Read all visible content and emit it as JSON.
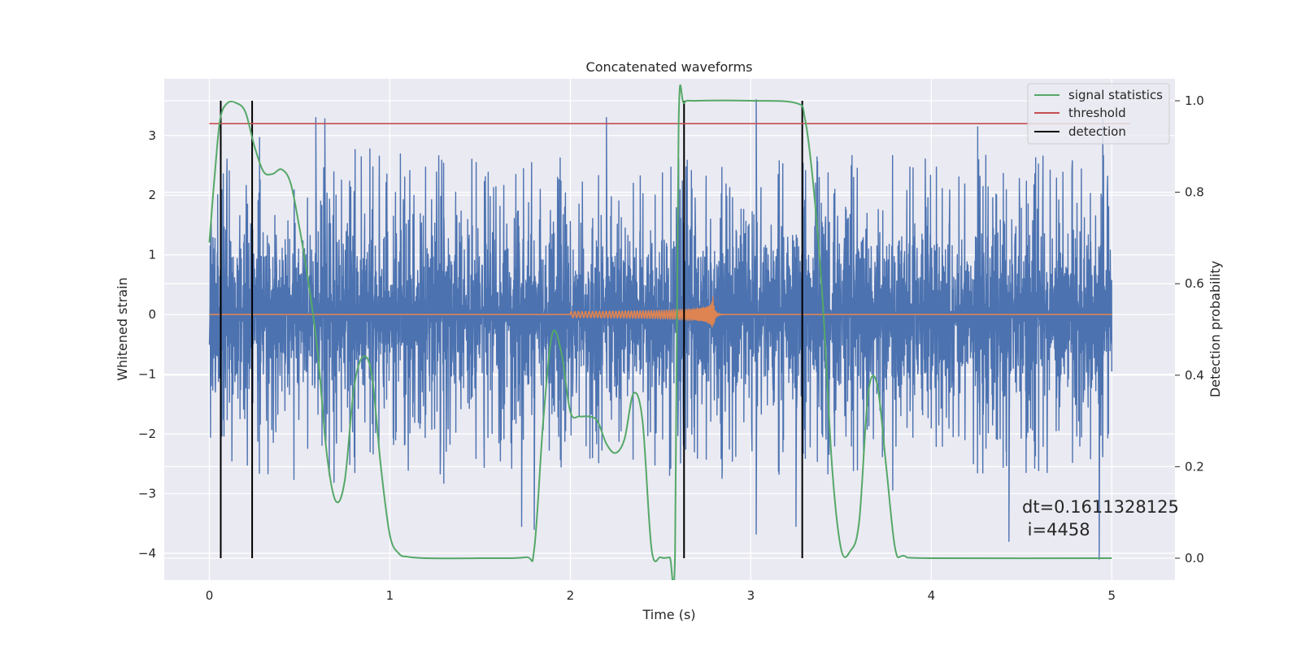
{
  "chart_data": {
    "type": "line",
    "title": "Concatenated waveforms",
    "xlabel": "Time (s)",
    "ylabel": "Whitened strain",
    "ylabel_right": "Detection probability",
    "xlim": [
      -0.25,
      5.35
    ],
    "ylim": [
      -4.45,
      3.95
    ],
    "ylim_right": [
      -0.048,
      1.048
    ],
    "xticks": [
      0,
      1,
      2,
      3,
      4,
      5
    ],
    "yticks": [
      -4,
      -3,
      -2,
      -1,
      0,
      1,
      2,
      3
    ],
    "yticks_right": [
      0.0,
      0.2,
      0.4,
      0.6,
      0.8,
      1.0
    ],
    "xtick_labels": [
      "0",
      "1",
      "2",
      "3",
      "4",
      "5"
    ],
    "ytick_labels": [
      "−4",
      "−3",
      "−2",
      "−1",
      "0",
      "1",
      "2",
      "3"
    ],
    "ytick_right_labels": [
      "0.0",
      "0.2",
      "0.4",
      "0.6",
      "0.8",
      "1.0"
    ],
    "grid": true,
    "legend_position": "top-right",
    "colors": {
      "strain": "#4c72b0",
      "template": "#dd8452",
      "signal_statistics": "#55a868",
      "threshold": "#c44e52",
      "detection": "#000000",
      "background": "#eaeaf2",
      "grid": "#ffffff"
    },
    "series": [
      {
        "name": "signal statistics",
        "axis": "right",
        "x": [
          0.0,
          0.03,
          0.06,
          0.1,
          0.15,
          0.2,
          0.25,
          0.3,
          0.35,
          0.4,
          0.45,
          0.5,
          0.55,
          0.6,
          0.65,
          0.7,
          0.75,
          0.8,
          0.85,
          0.9,
          0.95,
          1.0,
          1.05,
          1.1,
          1.2,
          1.5,
          1.75,
          1.8,
          1.85,
          1.9,
          1.95,
          2.0,
          2.05,
          2.1,
          2.15,
          2.2,
          2.25,
          2.3,
          2.35,
          2.4,
          2.45,
          2.5,
          2.55,
          2.58,
          2.6,
          2.63,
          2.7,
          3.0,
          3.25,
          3.3,
          3.35,
          3.4,
          3.45,
          3.5,
          3.55,
          3.6,
          3.65,
          3.7,
          3.75,
          3.8,
          3.85,
          4.0,
          5.0
        ],
        "y": [
          0.69,
          0.84,
          0.96,
          0.995,
          0.995,
          0.975,
          0.9,
          0.845,
          0.84,
          0.85,
          0.82,
          0.72,
          0.6,
          0.45,
          0.23,
          0.125,
          0.17,
          0.37,
          0.44,
          0.4,
          0.2,
          0.05,
          0.01,
          0.003,
          0.0,
          0.0,
          0.002,
          0.02,
          0.3,
          0.49,
          0.45,
          0.32,
          0.31,
          0.31,
          0.3,
          0.25,
          0.23,
          0.26,
          0.36,
          0.3,
          0.02,
          0.002,
          0.002,
          0.01,
          0.95,
          0.995,
          1.0,
          1.0,
          0.995,
          0.96,
          0.8,
          0.55,
          0.2,
          0.02,
          0.015,
          0.08,
          0.36,
          0.38,
          0.2,
          0.02,
          0.005,
          0.0,
          0.0
        ]
      },
      {
        "name": "threshold",
        "axis": "right",
        "x": [
          0.0,
          5.1
        ],
        "y": [
          0.95,
          0.95
        ]
      },
      {
        "name": "detection",
        "axis": "right",
        "x": [
          0.063,
          0.237,
          2.63,
          3.285
        ],
        "y_range": [
          0.0,
          1.0
        ]
      }
    ],
    "strain_series": {
      "axis": "left",
      "x_range": [
        0.0,
        5.0
      ],
      "amplitude_envelope": 1.5,
      "notable_peaks": [
        {
          "x": 0.59,
          "y": 3.3
        },
        {
          "x": 0.64,
          "y": 3.28
        },
        {
          "x": 2.2,
          "y": 3.3
        },
        {
          "x": 3.03,
          "y": 3.6
        },
        {
          "x": 4.95,
          "y": 3.28
        },
        {
          "x": 1.73,
          "y": -3.55
        },
        {
          "x": 1.8,
          "y": -3.6
        },
        {
          "x": 3.03,
          "y": -3.68
        },
        {
          "x": 3.25,
          "y": -3.55
        },
        {
          "x": 4.43,
          "y": -3.8
        },
        {
          "x": 4.93,
          "y": -4.1
        }
      ]
    },
    "template_series": {
      "axis": "left",
      "x_range": [
        2.0,
        2.8
      ],
      "chirp_peak": 0.45
    },
    "annotation": {
      "line1": "dt=0.1611328125",
      "line2": " i=4458"
    },
    "legend": [
      "signal statistics",
      "threshold",
      "detection"
    ]
  }
}
